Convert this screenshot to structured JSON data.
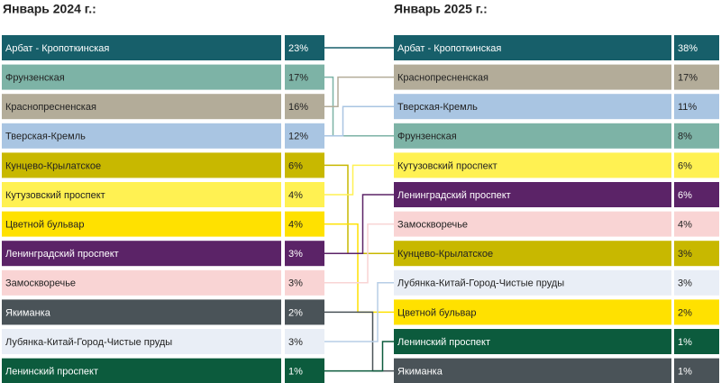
{
  "left": {
    "title": "Январь 2024 г.:",
    "rows": [
      {
        "name": "Арбат - Кропоткинская",
        "share": "23%",
        "color": "#175f6a"
      },
      {
        "name": "Фрунзенская",
        "share": "17%",
        "color": "#7db3a6"
      },
      {
        "name": "Краснопресненская",
        "share": "16%",
        "color": "#b3ac99"
      },
      {
        "name": "Тверская-Кремль",
        "share": "12%",
        "color": "#a9c5e2"
      },
      {
        "name": "Кунцево-Крылатское",
        "share": "6%",
        "color": "#c8b800"
      },
      {
        "name": "Кутузовский проспект",
        "share": "4%",
        "color": "#fff152"
      },
      {
        "name": "Цветной бульвар",
        "share": "4%",
        "color": "#ffe100"
      },
      {
        "name": "Ленинградский проспект",
        "share": "3%",
        "color": "#5b2367"
      },
      {
        "name": "Замоскворечье",
        "share": "3%",
        "color": "#f9d4d4"
      },
      {
        "name": "Якиманка",
        "share": "2%",
        "color": "#4a5358"
      },
      {
        "name": "Лубянка-Китай-Город-Чистые пруды",
        "share": "3%",
        "color": "#e9eef6"
      },
      {
        "name": "Ленинский проспект",
        "share": "1%",
        "color": "#0c5b3d"
      }
    ]
  },
  "right": {
    "title": "Январь 2025 г.:",
    "rows": [
      {
        "name": "Арбат - Кропоткинская",
        "share": "38%",
        "color": "#175f6a"
      },
      {
        "name": "Краснопресненская",
        "share": "17%",
        "color": "#b3ac99"
      },
      {
        "name": "Тверская-Кремль",
        "share": "11%",
        "color": "#a9c5e2"
      },
      {
        "name": "Фрунзенская",
        "share": "8%",
        "color": "#7db3a6"
      },
      {
        "name": "Кутузовский проспект",
        "share": "6%",
        "color": "#fff152"
      },
      {
        "name": "Ленинградский проспект",
        "share": "6%",
        "color": "#5b2367"
      },
      {
        "name": "Замоскворечье",
        "share": "4%",
        "color": "#f9d4d4"
      },
      {
        "name": "Кунцево-Крылатское",
        "share": "3%",
        "color": "#c8b800"
      },
      {
        "name": "Лубянка-Китай-Город-Чистые пруды",
        "share": "3%",
        "color": "#e9eef6"
      },
      {
        "name": "Цветной бульвар",
        "share": "2%",
        "color": "#ffe100"
      },
      {
        "name": "Ленинский проспект",
        "share": "1%",
        "color": "#0c5b3d"
      },
      {
        "name": "Якиманка",
        "share": "1%",
        "color": "#4a5358"
      }
    ]
  }
}
